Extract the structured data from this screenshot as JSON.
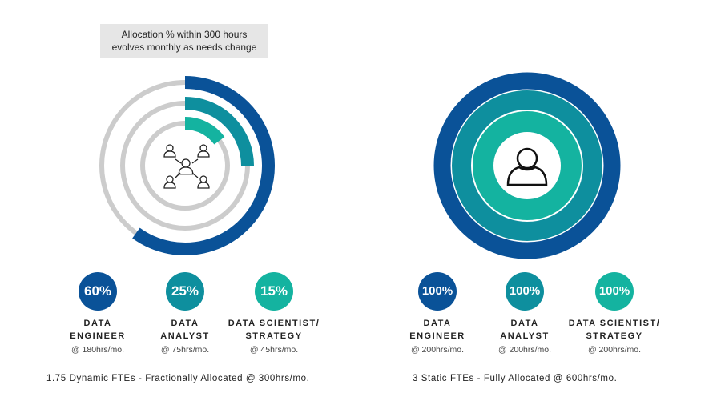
{
  "colors": {
    "engineer": "#0a5298",
    "analyst": "#0e8f9e",
    "scientist": "#14b3a0",
    "track": "#cccccc"
  },
  "note": {
    "line1": "Allocation % within 300 hours",
    "line2": "evolves monthly as needs change"
  },
  "dynamic": {
    "icon": "team-network-icon",
    "roles": [
      {
        "percent": "60%",
        "value": 60,
        "name": "DATA\nENGINEER",
        "hours": "@ 180hrs/mo."
      },
      {
        "percent": "25%",
        "value": 25,
        "name": "DATA\nANALYST",
        "hours": "@ 75hrs/mo."
      },
      {
        "percent": "15%",
        "value": 15,
        "name": "DATA SCIENTIST/\nSTRATEGY",
        "hours": "@ 45hrs/mo."
      }
    ],
    "footer": "1.75 Dynamic FTEs - Fractionally Allocated @ 300hrs/mo."
  },
  "static": {
    "icon": "person-icon",
    "roles": [
      {
        "percent": "100%",
        "value": 100,
        "name": "DATA\nENGINEER",
        "hours": "@ 200hrs/mo."
      },
      {
        "percent": "100%",
        "value": 100,
        "name": "DATA\nANALYST",
        "hours": "@ 200hrs/mo."
      },
      {
        "percent": "100%",
        "value": 100,
        "name": "DATA SCIENTIST/\nSTRATEGY",
        "hours": "@ 200hrs/mo."
      }
    ],
    "footer": "3 Static FTEs - Fully Allocated @ 600hrs/mo."
  }
}
